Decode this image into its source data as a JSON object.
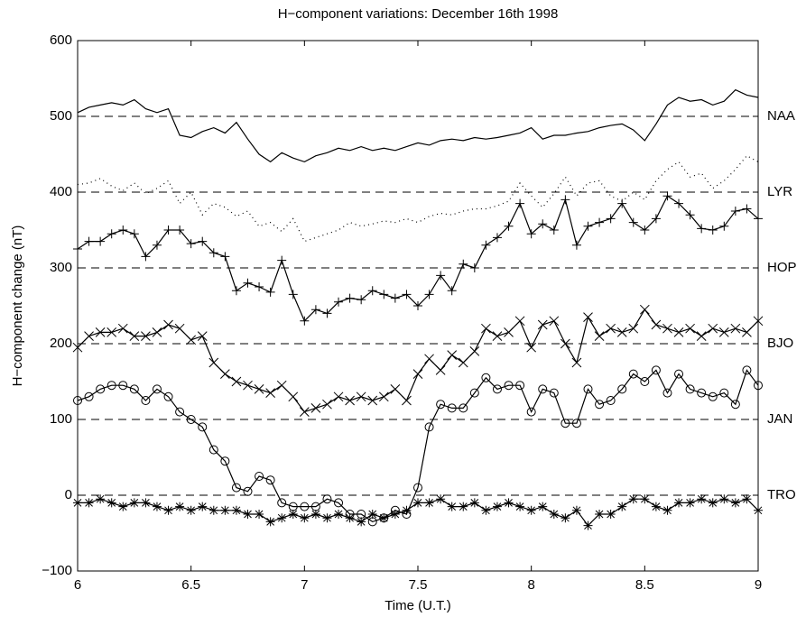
{
  "chart_data": {
    "type": "line",
    "title": "H−component variations: December 16th 1998",
    "xlabel": "Time (U.T.)",
    "ylabel": "H−component change (nT)",
    "xlim": [
      6,
      9
    ],
    "xticks": [
      6,
      6.5,
      7,
      7.5,
      8,
      8.5,
      9
    ],
    "ylim": [
      -100,
      600
    ],
    "yticks": [
      {
        "value": -100,
        "label": "−100"
      },
      0,
      100,
      200,
      300,
      400,
      500,
      600
    ],
    "x": [
      6,
      6.05,
      6.1,
      6.15,
      6.2,
      6.25,
      6.3,
      6.35,
      6.4,
      6.45,
      6.5,
      6.55,
      6.6,
      6.65,
      6.7,
      6.75,
      6.8,
      6.85,
      6.9,
      6.95,
      7,
      7.05,
      7.1,
      7.15,
      7.2,
      7.25,
      7.3,
      7.35,
      7.4,
      7.45,
      7.5,
      7.55,
      7.6,
      7.65,
      7.7,
      7.75,
      7.8,
      7.85,
      7.9,
      7.95,
      8,
      8.05,
      8.1,
      8.15,
      8.2,
      8.25,
      8.3,
      8.35,
      8.4,
      8.45,
      8.5,
      8.55,
      8.6,
      8.65,
      8.7,
      8.75,
      8.8,
      8.85,
      8.9,
      8.95,
      9
    ],
    "series": [
      {
        "name": "NAA",
        "color": "#000000",
        "baseline": 500,
        "marker": "none",
        "linestyle": "solid",
        "values": [
          505,
          512,
          515,
          518,
          515,
          522,
          510,
          505,
          510,
          475,
          472,
          480,
          485,
          478,
          492,
          470,
          450,
          440,
          452,
          445,
          440,
          448,
          452,
          458,
          455,
          460,
          455,
          458,
          455,
          460,
          465,
          462,
          468,
          470,
          468,
          472,
          470,
          472,
          475,
          478,
          485,
          470,
          475,
          475,
          478,
          480,
          485,
          488,
          490,
          482,
          468,
          490,
          515,
          525,
          520,
          522,
          515,
          520,
          535,
          528,
          525
        ]
      },
      {
        "name": "LYR",
        "color": "#000000",
        "baseline": 400,
        "marker": "none",
        "linestyle": "dotted",
        "values": [
          410,
          412,
          418,
          408,
          402,
          412,
          398,
          405,
          415,
          385,
          400,
          370,
          385,
          380,
          368,
          375,
          355,
          360,
          348,
          365,
          335,
          340,
          345,
          350,
          360,
          355,
          358,
          362,
          360,
          365,
          360,
          368,
          372,
          370,
          375,
          378,
          378,
          382,
          388,
          412,
          395,
          380,
          398,
          420,
          395,
          412,
          415,
          395,
          388,
          400,
          390,
          415,
          430,
          440,
          420,
          425,
          405,
          415,
          430,
          448,
          440
        ]
      },
      {
        "name": "HOP",
        "color": "#000000",
        "baseline": 300,
        "marker": "+",
        "linestyle": "solid",
        "values": [
          325,
          335,
          335,
          345,
          350,
          345,
          315,
          330,
          350,
          350,
          332,
          335,
          320,
          315,
          270,
          280,
          275,
          268,
          310,
          265,
          230,
          245,
          240,
          255,
          260,
          258,
          270,
          265,
          260,
          265,
          250,
          265,
          290,
          270,
          305,
          300,
          330,
          340,
          355,
          385,
          345,
          358,
          350,
          390,
          330,
          355,
          360,
          365,
          385,
          360,
          350,
          365,
          395,
          385,
          370,
          352,
          350,
          355,
          375,
          378,
          365
        ]
      },
      {
        "name": "BJO",
        "color": "#000000",
        "baseline": 200,
        "marker": "x",
        "linestyle": "solid",
        "values": [
          195,
          210,
          215,
          215,
          220,
          210,
          210,
          215,
          225,
          220,
          205,
          210,
          175,
          160,
          150,
          145,
          140,
          135,
          145,
          130,
          110,
          115,
          120,
          130,
          125,
          130,
          125,
          130,
          140,
          125,
          160,
          180,
          165,
          185,
          175,
          190,
          220,
          210,
          215,
          230,
          195,
          225,
          230,
          200,
          175,
          235,
          210,
          220,
          215,
          220,
          245,
          225,
          220,
          215,
          220,
          210,
          220,
          215,
          220,
          215,
          230
        ]
      },
      {
        "name": "JAN",
        "color": "#000000",
        "baseline": 100,
        "marker": "o",
        "linestyle": "solid",
        "values": [
          125,
          130,
          140,
          145,
          145,
          140,
          125,
          140,
          130,
          110,
          100,
          90,
          60,
          45,
          10,
          5,
          25,
          20,
          -10,
          -15,
          -15,
          -15,
          -5,
          -10,
          -25,
          -25,
          -35,
          -30,
          -20,
          -25,
          10,
          90,
          120,
          115,
          115,
          135,
          155,
          140,
          145,
          145,
          110,
          140,
          135,
          95,
          95,
          140,
          120,
          125,
          140,
          160,
          150,
          165,
          135,
          160,
          140,
          135,
          130,
          135,
          120,
          165,
          145
        ]
      },
      {
        "name": "TRO",
        "color": "#000000",
        "baseline": 0,
        "marker": "*",
        "linestyle": "solid",
        "values": [
          -10,
          -10,
          -5,
          -10,
          -15,
          -10,
          -10,
          -15,
          -20,
          -15,
          -20,
          -15,
          -20,
          -20,
          -20,
          -25,
          -25,
          -35,
          -30,
          -25,
          -30,
          -25,
          -30,
          -25,
          -30,
          -35,
          -25,
          -30,
          -25,
          -20,
          -10,
          -10,
          -5,
          -15,
          -15,
          -10,
          -20,
          -15,
          -10,
          -15,
          -20,
          -15,
          -25,
          -30,
          -20,
          -40,
          -25,
          -25,
          -15,
          -5,
          -5,
          -15,
          -20,
          -10,
          -10,
          -5,
          -10,
          -5,
          -10,
          -5,
          -20
        ]
      }
    ]
  }
}
